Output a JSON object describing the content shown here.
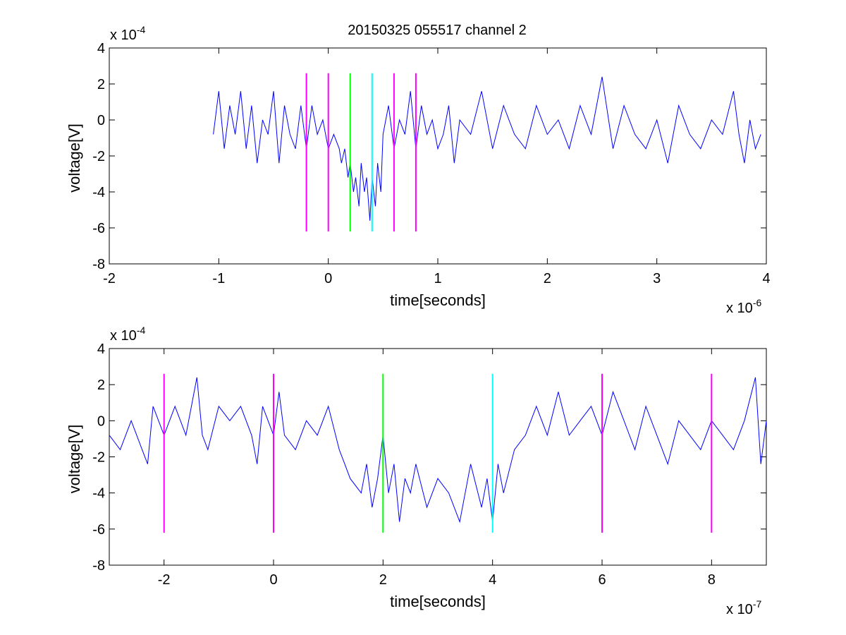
{
  "figure": {
    "title": "20150325 055517 channel 2"
  },
  "chart_data": [
    {
      "type": "line",
      "title": "20150325 055517 channel 2",
      "xlabel": "time[seconds]",
      "ylabel": "voltage[V]",
      "x_multiplier": "x 10",
      "x_exponent": "-6",
      "y_multiplier": "x 10",
      "y_exponent": "-4",
      "xlim": [
        -2,
        4
      ],
      "ylim": [
        -8,
        4
      ],
      "xticks": [
        -2,
        -1,
        0,
        1,
        2,
        3,
        4
      ],
      "yticks": [
        -8,
        -6,
        -4,
        -2,
        0,
        2,
        4
      ],
      "xtick_labels": [
        "-2",
        "-1",
        "0",
        "1",
        "2",
        "3",
        "4"
      ],
      "ytick_labels": [
        "-8",
        "-6",
        "-4",
        "-2",
        "0",
        "2",
        "4"
      ],
      "grid": false,
      "series": [
        {
          "color": "#0000ff",
          "x": [
            -1.05,
            -1.0,
            -0.95,
            -0.9,
            -0.85,
            -0.8,
            -0.75,
            -0.7,
            -0.65,
            -0.6,
            -0.55,
            -0.5,
            -0.45,
            -0.4,
            -0.35,
            -0.3,
            -0.25,
            -0.2,
            -0.15,
            -0.1,
            -0.05,
            0.0,
            0.05,
            0.1,
            0.12,
            0.15,
            0.18,
            0.2,
            0.23,
            0.25,
            0.28,
            0.3,
            0.33,
            0.35,
            0.38,
            0.4,
            0.43,
            0.45,
            0.48,
            0.5,
            0.55,
            0.6,
            0.65,
            0.7,
            0.75,
            0.8,
            0.85,
            0.9,
            0.95,
            1.0,
            1.05,
            1.1,
            1.15,
            1.2,
            1.3,
            1.4,
            1.5,
            1.6,
            1.7,
            1.8,
            1.9,
            2.0,
            2.1,
            2.2,
            2.3,
            2.4,
            2.5,
            2.6,
            2.7,
            2.8,
            2.9,
            3.0,
            3.1,
            3.2,
            3.3,
            3.4,
            3.5,
            3.6,
            3.7,
            3.75,
            3.8,
            3.85,
            3.9,
            3.95
          ],
          "values": [
            -0.8,
            1.6,
            -1.6,
            0.8,
            -0.8,
            1.6,
            -1.6,
            0.8,
            -2.4,
            0.0,
            -0.8,
            1.6,
            -2.4,
            0.8,
            -0.8,
            -1.6,
            0.8,
            -1.6,
            0.8,
            -0.8,
            0.0,
            -1.6,
            -0.8,
            -1.6,
            -2.4,
            -1.6,
            -3.2,
            -2.4,
            -4.0,
            -3.2,
            -4.8,
            -2.4,
            -4.0,
            -3.2,
            -5.6,
            -3.2,
            -4.8,
            -2.4,
            -4.0,
            -0.8,
            0.8,
            -1.6,
            0.0,
            -0.8,
            1.6,
            -1.6,
            0.8,
            -0.8,
            0.0,
            -1.6,
            -0.8,
            0.8,
            -2.4,
            0.0,
            -0.8,
            1.6,
            -1.6,
            0.8,
            -0.8,
            -1.6,
            0.8,
            -0.8,
            0.0,
            -1.6,
            0.8,
            -0.8,
            2.4,
            -1.6,
            0.8,
            -0.8,
            -1.6,
            0.0,
            -2.4,
            0.8,
            -0.8,
            -1.6,
            0.0,
            -0.8,
            1.6,
            -0.8,
            -2.4,
            0.0,
            -1.6,
            -0.8
          ]
        },
        {
          "color": "#ff00ff",
          "x": [
            -0.2,
            -0.2
          ],
          "values": [
            -6.2,
            2.6
          ]
        },
        {
          "color": "#ff00ff",
          "x": [
            0.0,
            0.0
          ],
          "values": [
            -6.2,
            2.6
          ]
        },
        {
          "color": "#00ff00",
          "x": [
            0.2,
            0.2
          ],
          "values": [
            -6.2,
            2.6
          ]
        },
        {
          "color": "#00ffff",
          "x": [
            0.4,
            0.4
          ],
          "values": [
            -6.2,
            2.6
          ]
        },
        {
          "color": "#ff00ff",
          "x": [
            0.6,
            0.6
          ],
          "values": [
            -6.2,
            2.6
          ]
        },
        {
          "color": "#ff00ff",
          "x": [
            0.8,
            0.8
          ],
          "values": [
            -6.2,
            2.6
          ]
        }
      ]
    },
    {
      "type": "line",
      "title": "",
      "xlabel": "time[seconds]",
      "ylabel": "voltage[V]",
      "x_multiplier": "x 10",
      "x_exponent": "-7",
      "y_multiplier": "x 10",
      "y_exponent": "-4",
      "xlim": [
        -3,
        9
      ],
      "ylim": [
        -8,
        4
      ],
      "xticks": [
        -2,
        0,
        2,
        4,
        6,
        8
      ],
      "yticks": [
        -8,
        -6,
        -4,
        -2,
        0,
        2,
        4
      ],
      "xtick_labels": [
        "-2",
        "0",
        "2",
        "4",
        "6",
        "8"
      ],
      "ytick_labels": [
        "-8",
        "-6",
        "-4",
        "-2",
        "0",
        "2",
        "4"
      ],
      "grid": false,
      "series": [
        {
          "color": "#0000ff",
          "x": [
            -3.0,
            -2.8,
            -2.6,
            -2.4,
            -2.3,
            -2.2,
            -2.0,
            -1.8,
            -1.6,
            -1.5,
            -1.4,
            -1.3,
            -1.2,
            -1.0,
            -0.8,
            -0.6,
            -0.4,
            -0.3,
            -0.2,
            0.0,
            0.1,
            0.2,
            0.4,
            0.6,
            0.8,
            1.0,
            1.2,
            1.3,
            1.4,
            1.6,
            1.7,
            1.8,
            1.9,
            2.0,
            2.1,
            2.2,
            2.3,
            2.4,
            2.5,
            2.6,
            2.8,
            3.0,
            3.2,
            3.4,
            3.6,
            3.8,
            3.9,
            4.0,
            4.1,
            4.2,
            4.4,
            4.6,
            4.8,
            5.0,
            5.2,
            5.4,
            5.6,
            5.8,
            6.0,
            6.2,
            6.4,
            6.6,
            6.8,
            7.0,
            7.2,
            7.4,
            7.6,
            7.8,
            8.0,
            8.2,
            8.4,
            8.6,
            8.8,
            8.9,
            9.0
          ],
          "values": [
            -0.8,
            -1.6,
            0.0,
            -1.6,
            -2.4,
            0.8,
            -0.8,
            0.8,
            -0.8,
            0.8,
            2.4,
            -0.8,
            -1.6,
            0.8,
            0.0,
            0.8,
            -0.8,
            -2.4,
            0.8,
            -0.8,
            1.6,
            -0.8,
            -1.6,
            0.0,
            -0.8,
            0.8,
            -1.6,
            -2.4,
            -3.2,
            -4.0,
            -2.4,
            -4.8,
            -3.2,
            -0.8,
            -4.0,
            -2.4,
            -5.6,
            -3.2,
            -4.0,
            -2.4,
            -4.8,
            -3.2,
            -4.0,
            -5.6,
            -2.4,
            -4.8,
            -3.2,
            -5.6,
            -2.4,
            -4.0,
            -1.6,
            -0.8,
            0.8,
            -0.8,
            1.6,
            -0.8,
            0.0,
            0.8,
            -0.8,
            1.6,
            0.0,
            -1.6,
            0.8,
            -0.8,
            -2.4,
            0.0,
            -0.8,
            -1.6,
            0.0,
            -0.8,
            -1.6,
            0.0,
            2.4,
            -2.4,
            0.0
          ]
        },
        {
          "color": "#ff00ff",
          "x": [
            -2,
            -2
          ],
          "values": [
            -6.2,
            2.6
          ]
        },
        {
          "color": "#ff00ff",
          "x": [
            0,
            0
          ],
          "values": [
            -6.2,
            2.6
          ]
        },
        {
          "color": "#00ff00",
          "x": [
            2,
            2
          ],
          "values": [
            -6.2,
            2.6
          ]
        },
        {
          "color": "#00ffff",
          "x": [
            4,
            4
          ],
          "values": [
            -6.2,
            2.6
          ]
        },
        {
          "color": "#ff00ff",
          "x": [
            6,
            6
          ],
          "values": [
            -6.2,
            2.6
          ]
        },
        {
          "color": "#ff00ff",
          "x": [
            8,
            8
          ],
          "values": [
            -6.2,
            2.6
          ]
        }
      ]
    }
  ]
}
